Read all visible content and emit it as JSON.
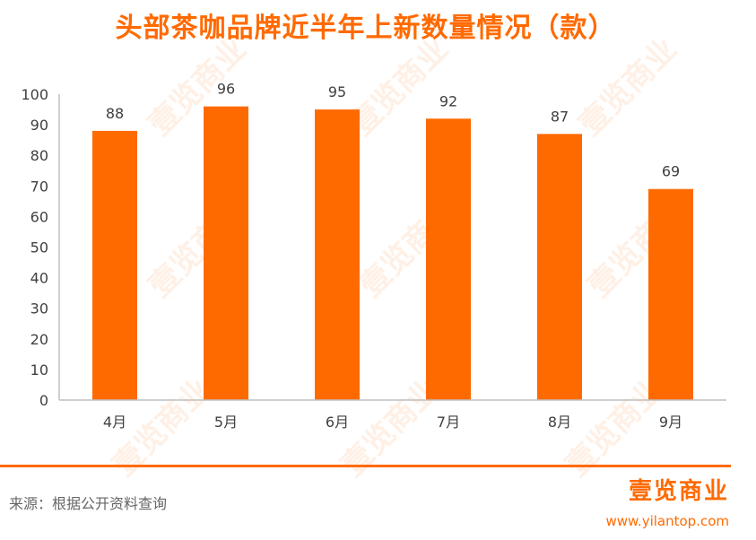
{
  "title": "头部茶咖品牌近半年上新数量情况（款）",
  "source": "来源：根据公开资料查询",
  "brand": {
    "name": "壹览商业",
    "url": "www.yilantop.com",
    "watermark": "壹览商业"
  },
  "colors": {
    "accent": "#ff6a00",
    "bar": "#ff6a00"
  },
  "chart_data": {
    "type": "bar",
    "categories": [
      "4月",
      "5月",
      "6月",
      "7月",
      "8月",
      "9月"
    ],
    "values": [
      88,
      96,
      95,
      92,
      87,
      69
    ],
    "yticks": [
      0,
      10,
      20,
      30,
      40,
      50,
      60,
      70,
      80,
      90,
      100
    ],
    "ylim": [
      0,
      100
    ],
    "grid": false,
    "title": "头部茶咖品牌近半年上新数量情况（款）"
  }
}
